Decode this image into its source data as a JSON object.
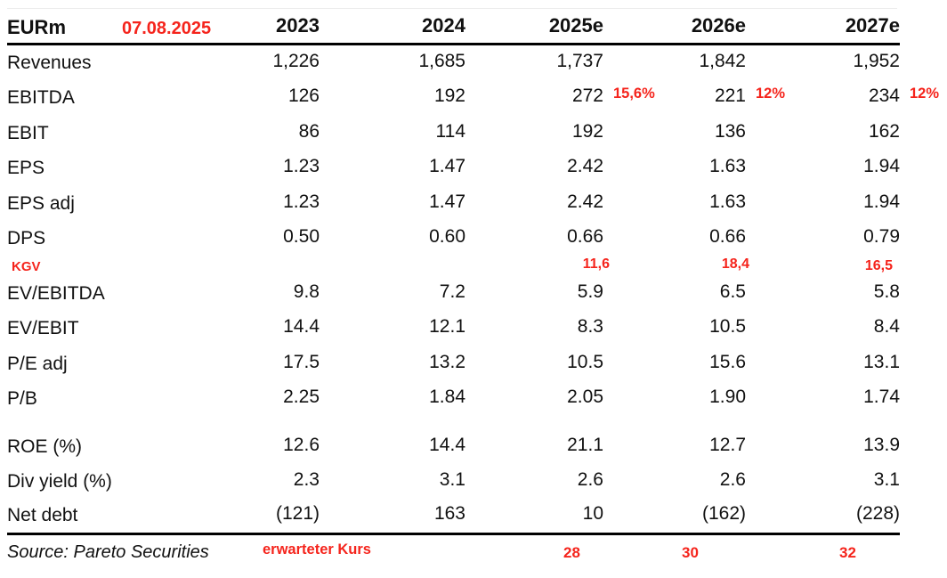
{
  "colors": {
    "red": "#f5241c",
    "text": "#111111",
    "line": "#000000",
    "hairline": "#ececec"
  },
  "header": {
    "unit_label": "EURm",
    "date_annotation": "07.08.2025",
    "year_columns": [
      "2023",
      "2024",
      "2025e",
      "2026e",
      "2027e"
    ]
  },
  "table": {
    "rows": [
      {
        "type": "data",
        "label": "Revenues",
        "values": [
          "1,226",
          "1,685",
          "1,737",
          "1,842",
          "1,952"
        ]
      },
      {
        "type": "data",
        "label": "EBITDA",
        "values": [
          "126",
          "192",
          "272",
          "221",
          "234"
        ],
        "notes": [
          "",
          "",
          "15,6%",
          "12%",
          "12%"
        ]
      },
      {
        "type": "data",
        "label": "EBIT",
        "values": [
          "86",
          "114",
          "192",
          "136",
          "162"
        ]
      },
      {
        "type": "data",
        "label": "EPS",
        "values": [
          "1.23",
          "1.47",
          "2.42",
          "1.63",
          "1.94"
        ]
      },
      {
        "type": "data",
        "label": "EPS adj",
        "values": [
          "1.23",
          "1.47",
          "2.42",
          "1.63",
          "1.94"
        ]
      },
      {
        "type": "data",
        "label": "DPS",
        "values": [
          "0.50",
          "0.60",
          "0.66",
          "0.66",
          "0.79"
        ]
      },
      {
        "type": "kgv",
        "label": "KGV",
        "values": [
          "11,6",
          "18,4",
          "16,5"
        ]
      },
      {
        "type": "data",
        "label": "EV/EBITDA",
        "values": [
          "9.8",
          "7.2",
          "5.9",
          "6.5",
          "5.8"
        ]
      },
      {
        "type": "data",
        "label": "EV/EBIT",
        "values": [
          "14.4",
          "12.1",
          "8.3",
          "10.5",
          "8.4"
        ]
      },
      {
        "type": "data",
        "label": "P/E adj",
        "values": [
          "17.5",
          "13.2",
          "10.5",
          "15.6",
          "13.1"
        ]
      },
      {
        "type": "data",
        "label": "P/B",
        "values": [
          "2.25",
          "1.84",
          "2.05",
          "1.90",
          "1.74"
        ]
      },
      {
        "type": "spacer"
      },
      {
        "type": "data",
        "label": "ROE (%)",
        "values": [
          "12.6",
          "14.4",
          "21.1",
          "12.7",
          "13.9"
        ]
      },
      {
        "type": "data",
        "label": "Div yield (%)",
        "values": [
          "2.3",
          "3.1",
          "2.6",
          "2.6",
          "3.1"
        ]
      },
      {
        "type": "data",
        "label": "Net debt",
        "values": [
          "(121)",
          "163",
          "10",
          "(162)",
          "(228)"
        ],
        "underline": true
      }
    ]
  },
  "footer": {
    "source": "Source: Pareto Securities",
    "expected_price_label": "erwarteter Kurs",
    "expected_prices": [
      "28",
      "30",
      "32"
    ]
  }
}
